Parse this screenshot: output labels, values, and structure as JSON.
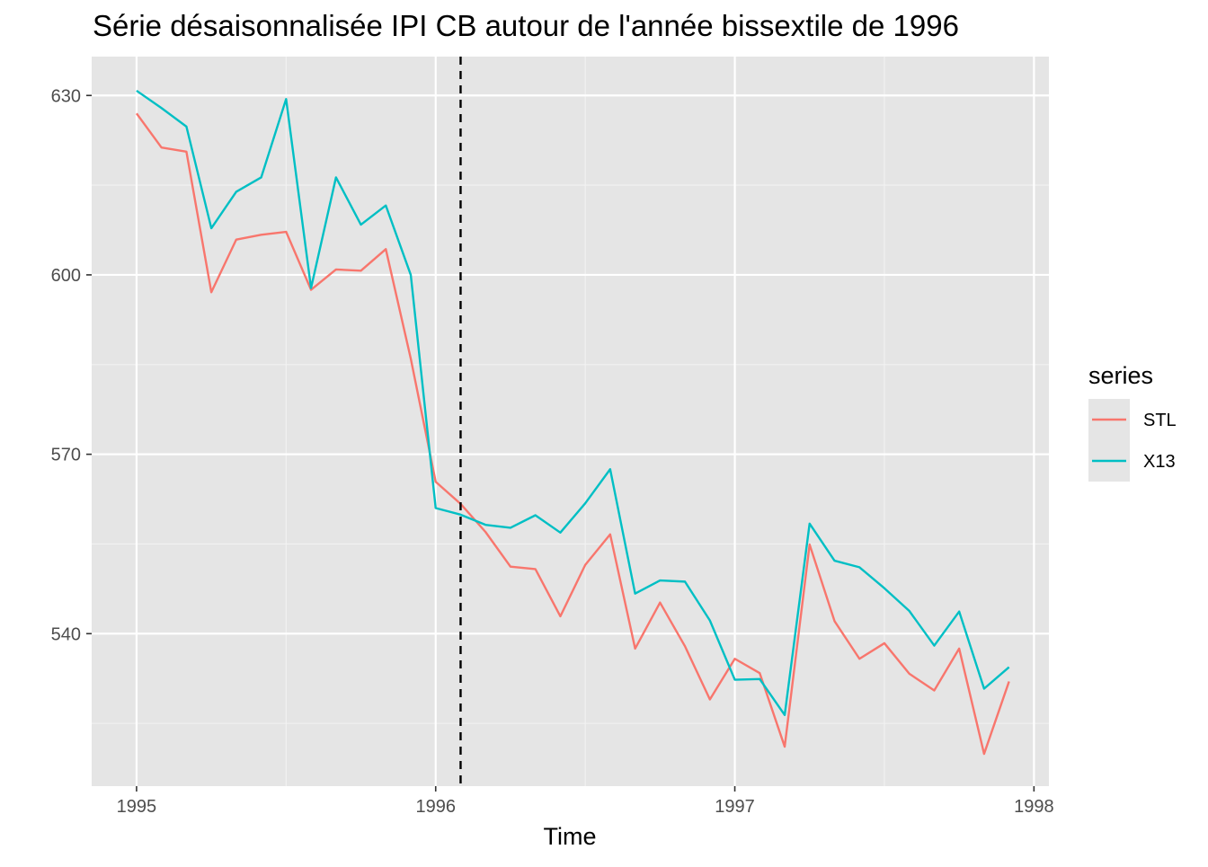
{
  "chart_data": {
    "type": "line",
    "title": "Série désaisonnalisée IPI CB autour de l'année bissextile de 1996",
    "xlabel": "Time",
    "ylabel": "",
    "xlim": [
      1994.85,
      1998.05
    ],
    "ylim": [
      514.5,
      636.5
    ],
    "x_ticks": [
      1995,
      1996,
      1997,
      1998
    ],
    "x_tick_labels": [
      "1995",
      "1996",
      "1997",
      "1998"
    ],
    "y_ticks": [
      540,
      570,
      600,
      630
    ],
    "y_tick_labels": [
      "540",
      "570",
      "600",
      "630"
    ],
    "y_minor_ticks": [
      525,
      555,
      585,
      615
    ],
    "x_minor_ticks": [
      1995.5,
      1996.5,
      1997.5
    ],
    "grid": true,
    "background": "#E5E5E5",
    "vline": {
      "x": 1996.0833,
      "style": "dashed",
      "color": "#000000"
    },
    "legend": {
      "title": "series",
      "position": "right"
    },
    "x": [
      1995.0,
      1995.0833,
      1995.1667,
      1995.25,
      1995.3333,
      1995.4167,
      1995.5,
      1995.5833,
      1995.6667,
      1995.75,
      1995.8333,
      1995.9167,
      1996.0,
      1996.0833,
      1996.1667,
      1996.25,
      1996.3333,
      1996.4167,
      1996.5,
      1996.5833,
      1996.6667,
      1996.75,
      1996.8333,
      1996.9167,
      1997.0,
      1997.0833,
      1997.1667,
      1997.25,
      1997.3333,
      1997.4167,
      1997.5,
      1997.5833,
      1997.6667,
      1997.75,
      1997.8333,
      1997.9167
    ],
    "series": [
      {
        "name": "STL",
        "color": "#F8766D",
        "values": [
          627.0,
          621.3,
          620.6,
          597.1,
          605.9,
          606.7,
          607.2,
          597.5,
          600.9,
          600.7,
          604.3,
          586.0,
          565.4,
          561.7,
          557.0,
          551.2,
          550.8,
          542.9,
          551.5,
          556.6,
          537.5,
          545.2,
          537.9,
          529.0,
          535.8,
          533.4,
          521.1,
          554.9,
          542.1,
          535.8,
          538.4,
          533.3,
          530.5,
          537.5,
          519.9,
          532.0
        ]
      },
      {
        "name": "X13",
        "color": "#00BFC4",
        "values": [
          630.8,
          627.9,
          624.8,
          607.8,
          613.9,
          616.3,
          629.4,
          597.8,
          616.3,
          608.4,
          611.6,
          600.0,
          561.0,
          559.9,
          558.2,
          557.7,
          559.8,
          556.9,
          561.8,
          567.5,
          546.7,
          548.9,
          548.7,
          542.2,
          532.3,
          532.4,
          526.4,
          558.4,
          552.2,
          551.1,
          547.6,
          543.8,
          538.0,
          543.7,
          530.8,
          534.4
        ]
      }
    ]
  }
}
